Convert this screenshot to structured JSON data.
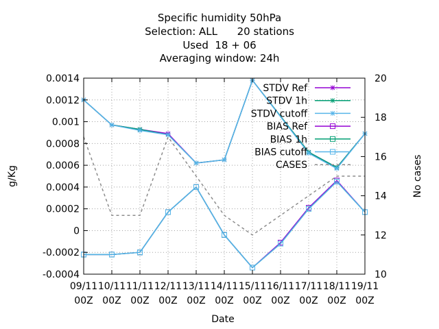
{
  "title_lines": [
    "Specific humidity 50hPa",
    "Selection: ALL      20 stations",
    "Used  18 + 06",
    "Averaging window: 24h"
  ],
  "chart_data": {
    "type": "line",
    "xlabel": "Date",
    "ylabel": "g/Kg",
    "y2label": "No cases",
    "categories": [
      "09/11\n00Z",
      "10/11\n00Z",
      "11/11\n00Z",
      "12/11\n00Z",
      "13/11\n00Z",
      "14/11\n00Z",
      "15/11\n00Z",
      "16/11\n00Z",
      "17/11\n00Z",
      "18/11\n00Z",
      "19/11\n00Z"
    ],
    "ylim": [
      -0.0004,
      0.0014
    ],
    "yticks": [
      "-0.0004",
      "-0.0002",
      "0",
      "0.0002",
      "0.0004",
      "0.0006",
      "0.0008",
      "0.001",
      "0.0012",
      "0.0014"
    ],
    "y2lim": [
      10,
      20
    ],
    "y2ticks": [
      "10",
      "12",
      "14",
      "16",
      "18",
      "20"
    ],
    "grid": true,
    "legend_position": "top-right",
    "series": [
      {
        "name": "STDV Ref",
        "axis": "y1",
        "color": "#9400d3",
        "marker": "star",
        "values": [
          0.0012,
          0.00097,
          0.00093,
          0.00089,
          0.00062,
          0.00065,
          0.00138,
          null,
          0.00072,
          0.00058,
          0.00089
        ]
      },
      {
        "name": "STDV 1h",
        "axis": "y1",
        "color": "#009e73",
        "marker": "star",
        "values": [
          0.0012,
          0.00097,
          0.00093,
          0.00088,
          0.00062,
          0.00065,
          0.00138,
          null,
          0.00072,
          0.00058,
          0.00089
        ]
      },
      {
        "name": "STDV cutoff",
        "axis": "y1",
        "color": "#56b4e9",
        "marker": "star",
        "values": [
          0.0012,
          0.00097,
          0.00092,
          0.00088,
          0.00062,
          0.00065,
          0.00138,
          null,
          0.00071,
          0.00057,
          0.00089
        ]
      },
      {
        "name": "BIAS Ref",
        "axis": "y1",
        "color": "#9400d3",
        "marker": "square",
        "values": [
          -0.00022,
          -0.00022,
          -0.0002,
          0.00017,
          0.0004,
          -4e-05,
          -0.00034,
          -0.00011,
          0.00021,
          0.00046,
          0.00017
        ]
      },
      {
        "name": "BIAS 1h",
        "axis": "y1",
        "color": "#009e73",
        "marker": "square",
        "values": [
          -0.00022,
          -0.00022,
          -0.0002,
          0.00017,
          0.0004,
          -4e-05,
          -0.00034,
          -0.00012,
          0.0002,
          0.00045,
          0.00017
        ]
      },
      {
        "name": "BIAS cutoff",
        "axis": "y1",
        "color": "#56b4e9",
        "marker": "square",
        "values": [
          -0.00022,
          -0.00022,
          -0.0002,
          0.00017,
          0.0004,
          -4e-05,
          -0.00034,
          -0.00012,
          0.0002,
          0.00045,
          0.00017
        ]
      },
      {
        "name": "CASES",
        "axis": "y2",
        "color": "#8c8c8c",
        "marker": "none",
        "dashed": true,
        "values": [
          17,
          13,
          13,
          17,
          15,
          13,
          12,
          13,
          14,
          15,
          15
        ]
      }
    ]
  }
}
